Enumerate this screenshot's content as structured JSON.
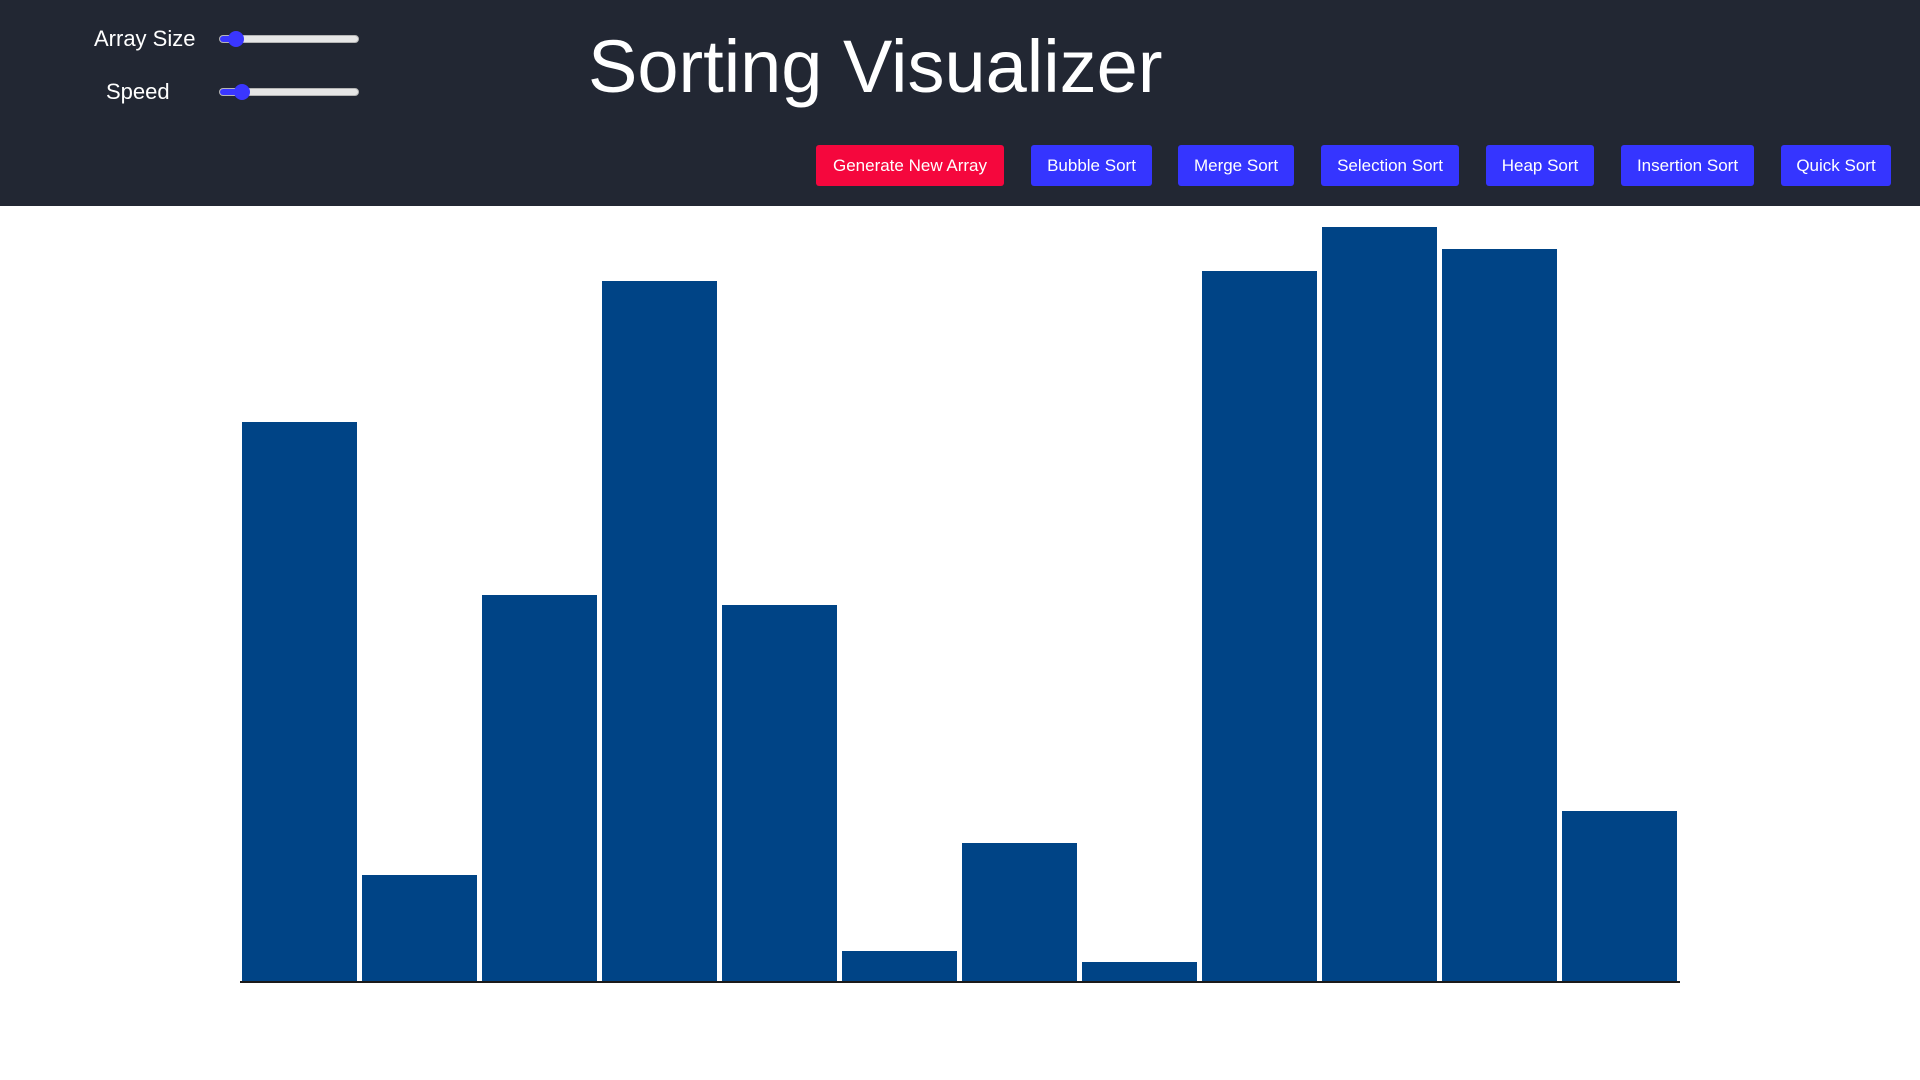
{
  "app": {
    "title": "Sorting Visualizer"
  },
  "controls": {
    "array_size": {
      "label": "Array Size",
      "value_fraction": 0.07
    },
    "speed": {
      "label": "Speed",
      "value_fraction": 0.12
    }
  },
  "buttons": {
    "generate": "Generate New Array",
    "bubble": "Bubble Sort",
    "merge": "Merge Sort",
    "selection": "Selection Sort",
    "heap": "Heap Sort",
    "insertion": "Insertion Sort",
    "quick": "Quick Sort"
  },
  "colors": {
    "header_bg": "#222733",
    "button_primary": "#3535ff",
    "button_danger": "#f5073d",
    "bar": "#004486",
    "slider_accent": "#3a36ff"
  },
  "chart_data": {
    "type": "bar",
    "values": [
      559,
      106,
      386,
      700,
      376,
      30,
      138,
      19,
      710,
      754,
      732,
      170
    ],
    "ylim": [
      0,
      754
    ]
  }
}
